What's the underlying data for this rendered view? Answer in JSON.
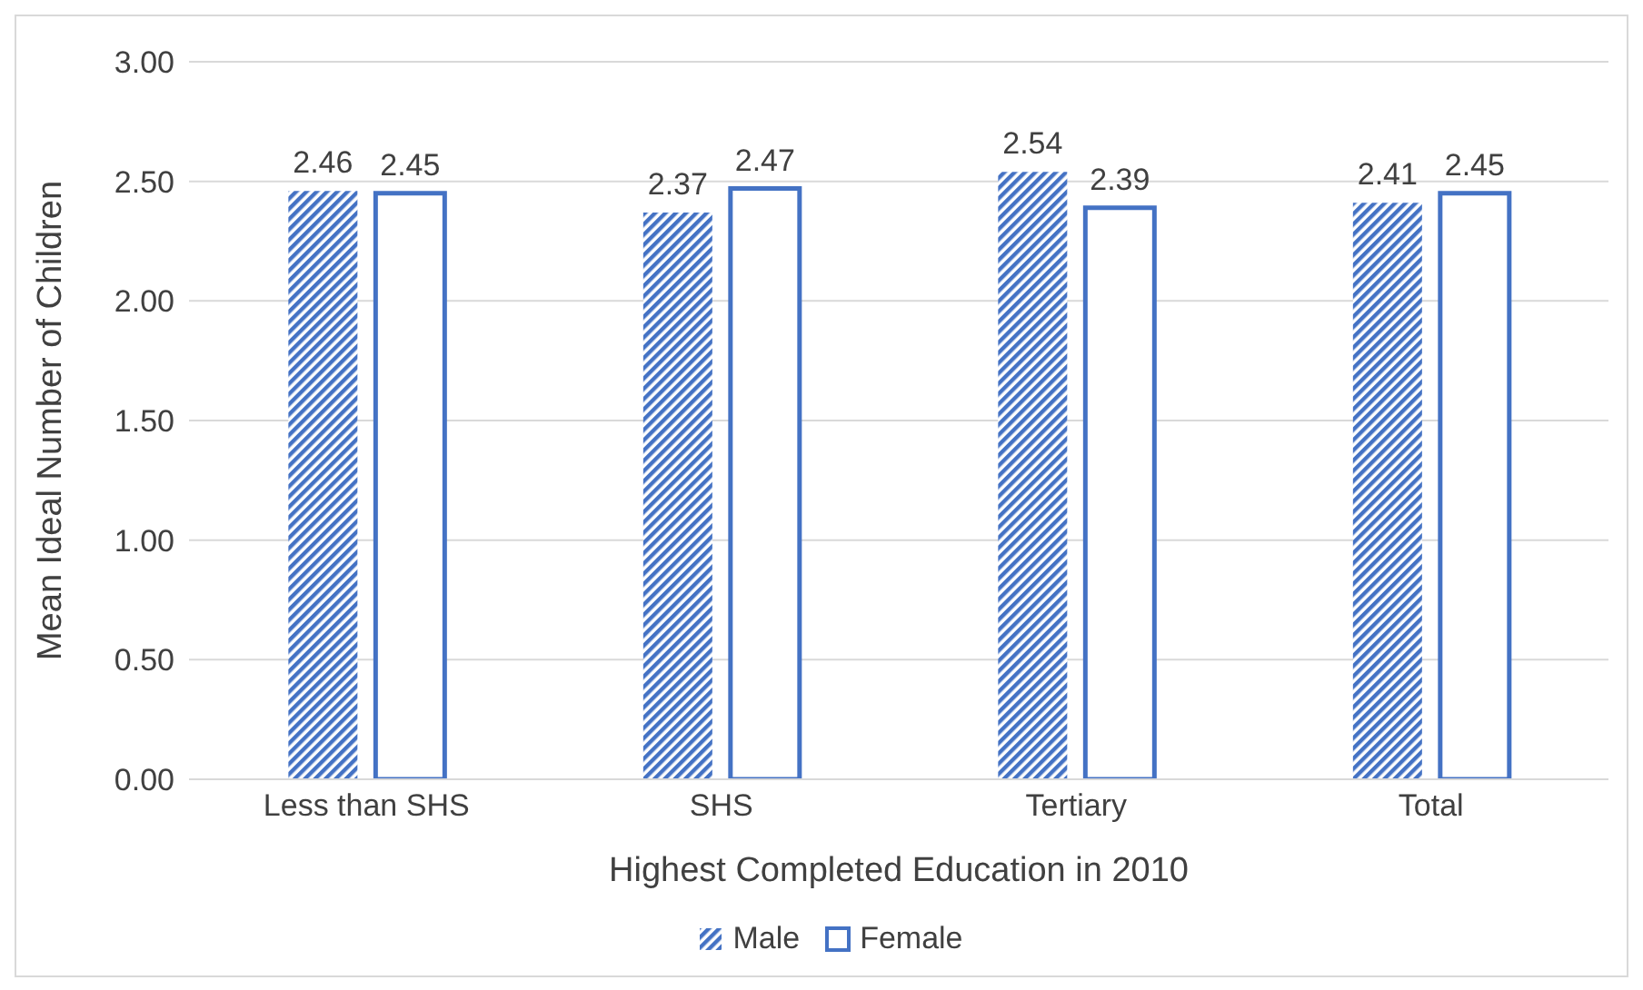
{
  "chart_data": {
    "type": "bar",
    "xlabel": "Highest Completed Education in 2010",
    "ylabel": "Mean Ideal Number of Children",
    "categories": [
      "Less than SHS",
      "SHS",
      "Tertiary",
      "Total"
    ],
    "series": [
      {
        "name": "Male",
        "color": "#4472c4",
        "values": [
          2.46,
          2.37,
          2.54,
          2.41
        ]
      },
      {
        "name": "Female",
        "color": "#4472c4",
        "values": [
          2.45,
          2.47,
          2.39,
          2.45
        ]
      }
    ],
    "ylim": [
      0,
      3
    ],
    "yticks": [
      {
        "value": 0,
        "label": "0.00"
      },
      {
        "value": 0.5,
        "label": "0.50"
      },
      {
        "value": 1,
        "label": "1.00"
      },
      {
        "value": 1.5,
        "label": "1.50"
      },
      {
        "value": 2,
        "label": "2.00"
      },
      {
        "value": 2.5,
        "label": "2.50"
      },
      {
        "value": 3,
        "label": "3.00"
      }
    ],
    "grid": "y",
    "legend": "bottom",
    "data_labels": true
  }
}
